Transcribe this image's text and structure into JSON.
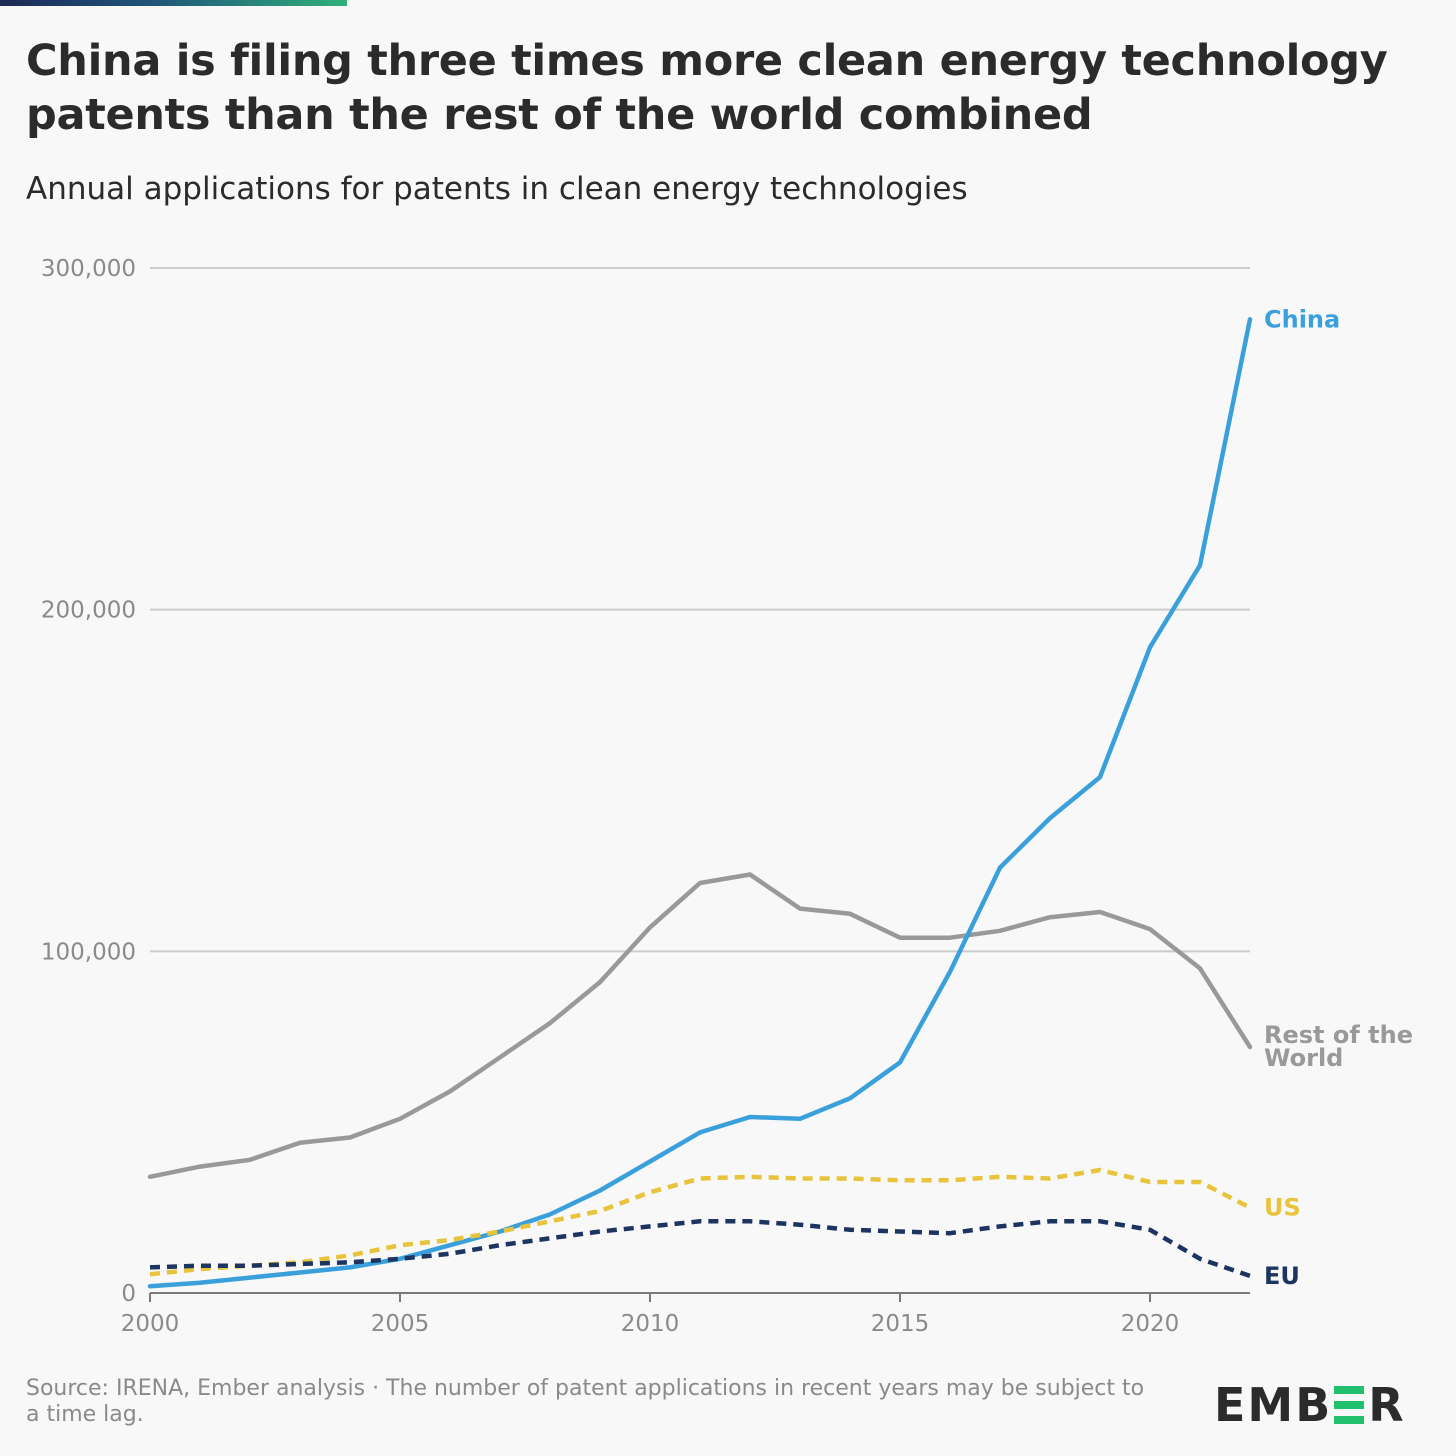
{
  "header": {
    "title": "China is filing three times more clean energy technology patents than the rest of the world combined",
    "subtitle": "Annual applications for patents in clean energy technologies"
  },
  "footer": {
    "source": "Source: IRENA, Ember analysis · The number of patent applications in recent years may be subject to a time lag.",
    "logo": {
      "prefix": "EMB",
      "suffix": "R",
      "text": "EMBER"
    }
  },
  "colors": {
    "china": "#3aa0dc",
    "rest_of_world": "#999999",
    "us": "#e8c33c",
    "eu": "#1d3461",
    "grid": "#cccccc",
    "axis_text": "#8a8a8a",
    "brand_green": "#20c06e"
  },
  "chart_data": {
    "type": "line",
    "title": "China is filing three times more clean energy technology patents than the rest of the world combined",
    "subtitle": "Annual applications for patents in clean energy technologies",
    "xlabel": "",
    "ylabel": "",
    "xlim": [
      2000,
      2022
    ],
    "ylim": [
      0,
      300000
    ],
    "x_ticks": [
      2000,
      2005,
      2010,
      2015,
      2020
    ],
    "x_tick_labels": [
      "2000",
      "2005",
      "2010",
      "2015",
      "2020"
    ],
    "y_ticks": [
      0,
      100000,
      200000,
      300000
    ],
    "y_tick_labels": [
      "0",
      "100,000",
      "200,000",
      "300,000"
    ],
    "grid": true,
    "legend": "inline-right",
    "x": [
      2000,
      2001,
      2002,
      2003,
      2004,
      2005,
      2006,
      2007,
      2008,
      2009,
      2010,
      2011,
      2012,
      2013,
      2014,
      2015,
      2016,
      2017,
      2018,
      2019,
      2020,
      2021,
      2022
    ],
    "series": [
      {
        "key": "rest_of_world",
        "name": "Rest of the World",
        "label_lines": [
          "Rest of the",
          "World"
        ],
        "style": "solid",
        "values": [
          34000,
          37000,
          39000,
          44000,
          45500,
          51000,
          59000,
          69000,
          79000,
          91000,
          107000,
          120000,
          122500,
          112500,
          111000,
          104000,
          104000,
          106000,
          110000,
          111500,
          106500,
          95000,
          72000
        ]
      },
      {
        "key": "china",
        "name": "China",
        "label_lines": [
          "China"
        ],
        "style": "solid",
        "values": [
          2000,
          3000,
          4500,
          6000,
          7500,
          10000,
          14000,
          18000,
          23000,
          30000,
          38500,
          47000,
          51500,
          51000,
          57000,
          67500,
          94000,
          124500,
          139000,
          151000,
          189000,
          213000,
          285000
        ]
      },
      {
        "key": "us",
        "name": "US",
        "label_lines": [
          "US"
        ],
        "style": "dashed",
        "values": [
          5500,
          7000,
          8000,
          9000,
          11000,
          14000,
          15500,
          18000,
          21000,
          24000,
          29500,
          33500,
          34000,
          33500,
          33500,
          33000,
          33000,
          34000,
          33500,
          36000,
          32500,
          32500,
          25000
        ]
      },
      {
        "key": "eu",
        "name": "EU",
        "label_lines": [
          "EU"
        ],
        "style": "dashed",
        "values": [
          7500,
          8000,
          8000,
          8500,
          9000,
          10000,
          11500,
          14000,
          16000,
          18000,
          19500,
          21000,
          21000,
          20000,
          18500,
          18000,
          17500,
          19500,
          21000,
          21000,
          18500,
          10000,
          5000
        ]
      }
    ]
  }
}
